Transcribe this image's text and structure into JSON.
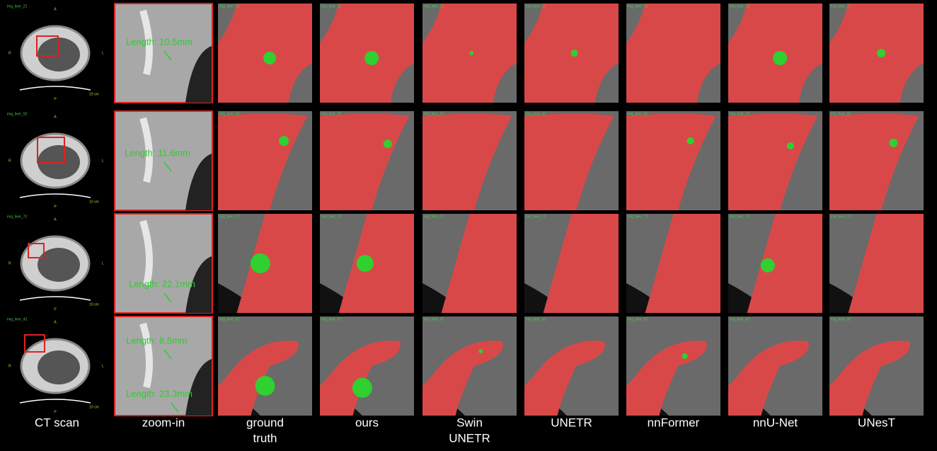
{
  "column_labels": [
    [
      "CT scan"
    ],
    [
      "zoom-in"
    ],
    [
      "ground",
      "truth"
    ],
    [
      "ours"
    ],
    [
      "Swin",
      "UNETR"
    ],
    [
      "UNETR"
    ],
    [
      "nnFormer"
    ],
    [
      "nnU-Net"
    ],
    [
      "UNesT"
    ]
  ],
  "orientation": {
    "top": "A",
    "left": "R",
    "right": "L",
    "bottom": "P",
    "scale": "10 cm"
  },
  "rows": [
    {
      "id": "img_liver_21",
      "lengths": [
        "Length: 10.5mm"
      ]
    },
    {
      "id": "img_liver_92",
      "lengths": [
        "Length: 11.6mm"
      ]
    },
    {
      "id": "img_liver_72",
      "lengths": [
        "Length: 22.1mm"
      ]
    },
    {
      "id": "img_liver_42",
      "lengths": [
        "Length: 8.5mm",
        "Length: 23.3mm"
      ]
    }
  ]
}
